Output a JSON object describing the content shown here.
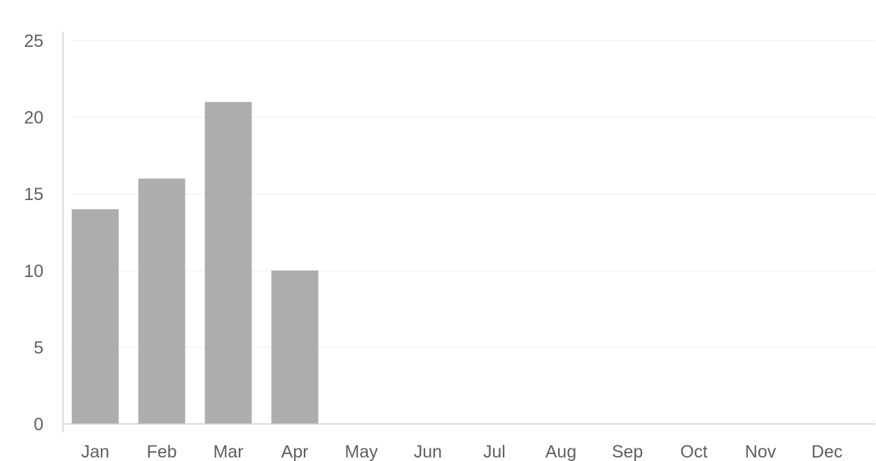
{
  "chart_data": {
    "type": "bar",
    "title": "",
    "xlabel": "",
    "ylabel": "",
    "categories": [
      "Jan",
      "Feb",
      "Mar",
      "Apr",
      "May",
      "Jun",
      "Jul",
      "Aug",
      "Sep",
      "Oct",
      "Nov",
      "Dec"
    ],
    "values": [
      14,
      16,
      21,
      10,
      null,
      null,
      null,
      null,
      null,
      null,
      null,
      null
    ],
    "ylim": [
      0,
      25
    ],
    "yticks": [
      "0",
      "5",
      "10",
      "15",
      "20",
      "25"
    ],
    "grid": true,
    "legend": "none",
    "colors": {
      "bar": "#adadad",
      "grid": "#f1f1f1",
      "axis": "#cfcfcf",
      "text": "#5f5f5f"
    }
  }
}
